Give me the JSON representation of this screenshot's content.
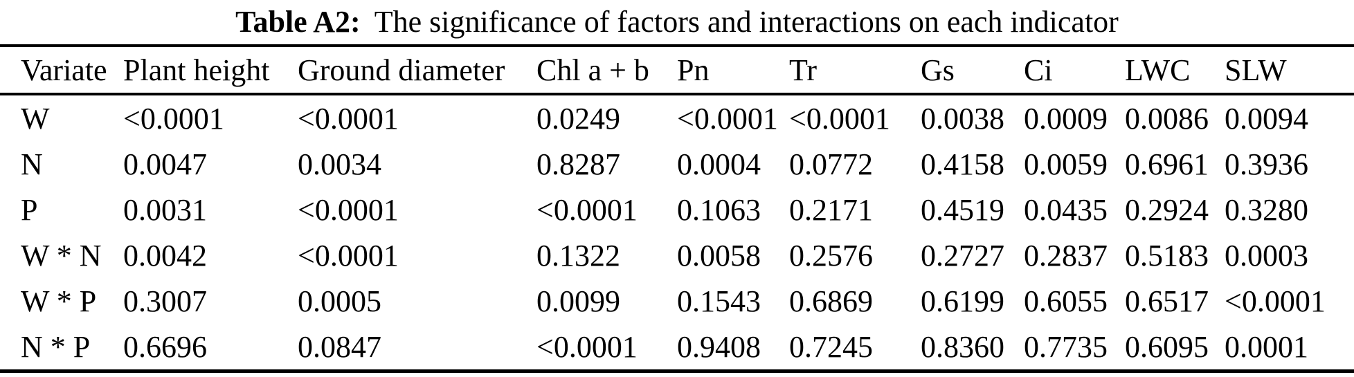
{
  "caption": {
    "label": "Table A2:",
    "text": "The significance of factors and interactions on each indicator"
  },
  "table": {
    "columns": [
      "Variate",
      "Plant height",
      "Ground diameter",
      "Chl a + b",
      "Pn",
      "Tr",
      "Gs",
      "Ci",
      "LWC",
      "SLW"
    ],
    "rows": [
      {
        "variate": "W",
        "values": [
          "<0.0001",
          "<0.0001",
          "0.0249",
          "<0.0001",
          "<0.0001",
          "0.0038",
          "0.0009",
          "0.0086",
          "0.0094"
        ]
      },
      {
        "variate": "N",
        "values": [
          "0.0047",
          "0.0034",
          "0.8287",
          "0.0004",
          "0.0772",
          "0.4158",
          "0.0059",
          "0.6961",
          "0.3936"
        ]
      },
      {
        "variate": "P",
        "values": [
          "0.0031",
          "<0.0001",
          "<0.0001",
          "0.1063",
          "0.2171",
          "0.4519",
          "0.0435",
          "0.2924",
          "0.3280"
        ]
      },
      {
        "variate": "W * N",
        "values": [
          "0.0042",
          "<0.0001",
          "0.1322",
          "0.0058",
          "0.2576",
          "0.2727",
          "0.2837",
          "0.5183",
          "0.0003"
        ]
      },
      {
        "variate": "W * P",
        "values": [
          "0.3007",
          "0.0005",
          "0.0099",
          "0.1543",
          "0.6869",
          "0.6199",
          "0.6055",
          "0.6517",
          "<0.0001"
        ]
      },
      {
        "variate": "N * P",
        "values": [
          "0.6696",
          "0.0847",
          "<0.0001",
          "0.9408",
          "0.7245",
          "0.8360",
          "0.7735",
          "0.6095",
          "0.0001"
        ]
      }
    ]
  },
  "colors": {
    "background": "#ffffff",
    "text": "#000000",
    "rule": "#000000"
  }
}
